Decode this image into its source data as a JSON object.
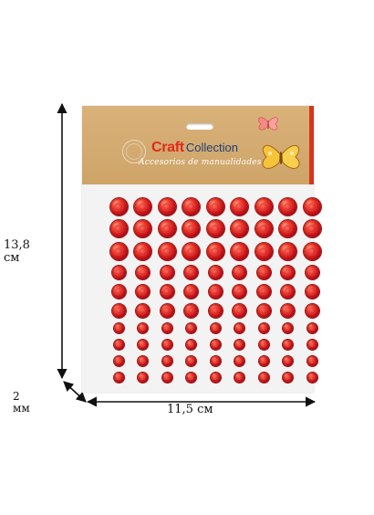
{
  "package": {
    "brand_craft": "Craft",
    "brand_collection": "Collection",
    "tagline": "Accesorios de manualidades",
    "colors": {
      "kraft": "#d3a86d",
      "gem_red": "#d11a1e",
      "stripe": "#d6361d"
    },
    "sticker_rows": [
      {
        "count": 9,
        "size": "large"
      },
      {
        "count": 9,
        "size": "large"
      },
      {
        "count": 9,
        "size": "large"
      },
      {
        "count": 9,
        "size": "medium"
      },
      {
        "count": 9,
        "size": "medium"
      },
      {
        "count": 9,
        "size": "medium"
      },
      {
        "count": 9,
        "size": "small"
      },
      {
        "count": 9,
        "size": "small"
      },
      {
        "count": 9,
        "size": "small"
      },
      {
        "count": 9,
        "size": "small"
      }
    ]
  },
  "dimensions": {
    "height_value": "13,8",
    "height_unit": "см",
    "depth_value": "2",
    "depth_unit": "мм",
    "width": "11,5 см"
  }
}
